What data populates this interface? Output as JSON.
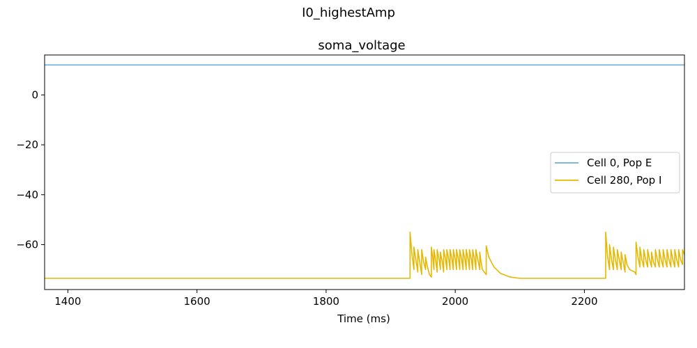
{
  "chart_data": {
    "type": "line",
    "suptitle": "I0_highestAmp",
    "title": "soma_voltage",
    "xlabel": "Time (ms)",
    "ylabel": "",
    "xlim": [
      1364,
      2355
    ],
    "ylim": [
      -78,
      16
    ],
    "xticks": [
      1400,
      1600,
      1800,
      2000,
      2200
    ],
    "yticks": [
      0,
      -20,
      -40,
      -60
    ],
    "grid": false,
    "legend_position": "center-right",
    "series": [
      {
        "name": "Cell 0, Pop E",
        "color": "#6baed6",
        "x": [
          1364,
          2355
        ],
        "y": [
          12,
          12
        ]
      },
      {
        "name": "Cell 280, Pop I",
        "color": "#e6b800",
        "rest": -73.5,
        "x": [
          1364,
          1930,
          1930,
          1933,
          1936,
          1936,
          1939,
          1942,
          1942,
          1945,
          1948,
          1948,
          1951,
          1954,
          1954,
          1957,
          1960,
          1963,
          1963,
          1965,
          1967,
          1967,
          1970,
          1972,
          1972,
          1975,
          1977,
          1977,
          1980,
          1982,
          1982,
          1985,
          1987,
          1987,
          1990,
          1992,
          1992,
          1995,
          1997,
          1997,
          2000,
          2002,
          2002,
          2005,
          2007,
          2007,
          2010,
          2012,
          2012,
          2015,
          2017,
          2017,
          2020,
          2022,
          2022,
          2025,
          2027,
          2027,
          2030,
          2032,
          2032,
          2035,
          2038,
          2038,
          2040,
          2042,
          2048,
          2048,
          2052,
          2060,
          2070,
          2085,
          2100,
          2233,
          2233,
          2236,
          2239,
          2239,
          2242,
          2245,
          2245,
          2248,
          2251,
          2251,
          2254,
          2257,
          2257,
          2260,
          2263,
          2263,
          2266,
          2270,
          2278,
          2280,
          2280,
          2283,
          2286,
          2286,
          2289,
          2292,
          2292,
          2295,
          2298,
          2298,
          2301,
          2304,
          2304,
          2307,
          2310,
          2310,
          2313,
          2316,
          2316,
          2319,
          2322,
          2322,
          2325,
          2328,
          2328,
          2331,
          2334,
          2334,
          2337,
          2340,
          2340,
          2343,
          2346,
          2346,
          2349,
          2352,
          2352,
          2355
        ],
        "y": [
          -73.5,
          -73.5,
          -55,
          -64,
          -70,
          -61,
          -66,
          -71,
          -62,
          -67,
          -72,
          -62,
          -67,
          -70,
          -65,
          -69,
          -72,
          -73,
          -61,
          -65,
          -70,
          -62,
          -67,
          -71,
          -62,
          -66,
          -70,
          -63,
          -67,
          -71,
          -62,
          -66,
          -70,
          -62,
          -66,
          -70,
          -62,
          -66,
          -70,
          -62,
          -66,
          -70,
          -62,
          -66,
          -70,
          -62,
          -66,
          -70,
          -62,
          -66,
          -70,
          -62,
          -66,
          -70,
          -62,
          -66,
          -70,
          -62,
          -66,
          -70,
          -62,
          -66,
          -70,
          -63,
          -67,
          -70,
          -72,
          -60.5,
          -65,
          -69,
          -71.5,
          -73,
          -73.5,
          -73.5,
          -55,
          -65,
          -70,
          -60,
          -66,
          -70,
          -61,
          -66,
          -70,
          -62,
          -66,
          -70,
          -63,
          -67,
          -71,
          -64,
          -68,
          -70,
          -71,
          -72,
          -59,
          -65,
          -69,
          -61,
          -66,
          -69,
          -62,
          -66,
          -69,
          -62,
          -66,
          -69,
          -63,
          -67,
          -69,
          -62,
          -66,
          -69,
          -62,
          -66,
          -69,
          -62,
          -66,
          -69,
          -62,
          -66,
          -69,
          -62,
          -66,
          -69,
          -62,
          -66,
          -69,
          -62,
          -66,
          -68,
          -62,
          -64
        ]
      }
    ]
  }
}
